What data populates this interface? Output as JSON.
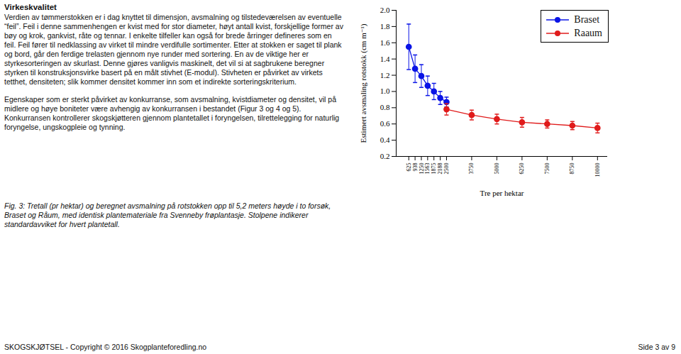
{
  "heading": "Virkeskvalitet",
  "paragraphs": [
    "Verdien av tømmerstokken er i dag knyttet til dimensjon, avsmalning og tilstedeværelsen av eventuelle “feil”. Feil i denne sammenhengen er kvist med for stor diameter, høyt antall kvist, forskjellige former av bøy og krok, gankvist, råte og tennar. I enkelte tilfeller kan også for brede årringer defineres som en feil. Feil fører til nedklassing av virket til mindre verdifulle sortimenter. Etter at stokken er saget til plank og bord, går den ferdige trelasten gjennom nye runder med sortering. En av de viktige her er styrkesorteringen av skurlast. Denne gjøres vanligvis maskinelt, det vil si at sagbrukene beregner styrken til konstruksjonsvirke basert på en målt stivhet (E-modul). Stivheten er påvirket av virkets tetthet, densiteten; slik kommer densitet kommer inn som et indirekte sorteringskriterium.",
    "Egenskaper som er sterkt påvirket av konkurranse, som avsmalning, kvistdiameter og densitet, vil på midlere og høye boniteter være avhengig av konkurransen i bestandet (Figur 3 og 4 og 5). Konkurransen kontrollerer skogskjøtteren gjennom plantetallet i foryngelsen, tilrettelegging for naturlig foryngelse, ungskogpleie og tynning."
  ],
  "chart_data": {
    "type": "line",
    "xlabel": "Tre per hektar",
    "ylabel": "Estimert avsmaling rotstokk (cm m⁻¹)",
    "xlim": [
      0,
      10500
    ],
    "ylim": [
      0.2,
      2.0
    ],
    "xticks": [
      625,
      938,
      1250,
      1563,
      1875,
      2188,
      2500,
      3750,
      5000,
      6250,
      7500,
      8750,
      10000
    ],
    "yticks": [
      0.2,
      0.4,
      0.6,
      0.8,
      {
        "value": 1,
        "label": "1.0"
      },
      1.2,
      1.4,
      1.6,
      1.8,
      {
        "value": 2,
        "label": "2.0"
      }
    ],
    "grid": false,
    "legend": "top-right",
    "series": [
      {
        "name": "Braset",
        "color": "#0a14e6",
        "marker": "circle",
        "line_style": "solid",
        "x": [
          625,
          938,
          1250,
          1563,
          1875,
          2188,
          2500
        ],
        "values": [
          1.55,
          1.28,
          1.19,
          1.07,
          1.0,
          0.92,
          0.87
        ],
        "std_dev": [
          0.28,
          0.17,
          0.14,
          0.12,
          0.1,
          0.08,
          0.06
        ]
      },
      {
        "name": "Raaum",
        "color": "#e01b1b",
        "marker": "circle",
        "line_style": "solid",
        "x": [
          2500,
          3750,
          5000,
          6250,
          7500,
          8750,
          10000
        ],
        "values": [
          0.78,
          0.71,
          0.66,
          0.62,
          0.6,
          0.58,
          0.55
        ],
        "std_dev": [
          0.07,
          0.06,
          0.06,
          0.06,
          0.05,
          0.05,
          0.06
        ]
      }
    ]
  },
  "caption": "Fig. 3: Tretall (pr hektar) og beregnet avsmalning på rotstokken opp til 5,2 meters høyde i to forsøk, Braset og Råum, med identisk plantemateriale fra Svenneby frøplantasje. Stolpene indikerer standardavviket for hvert plantetall.",
  "footer": {
    "left": "SKOGSKJØTSEL - Copyright © 2016 Skogplanteforedling.no",
    "right": "Side 3 av 9"
  }
}
